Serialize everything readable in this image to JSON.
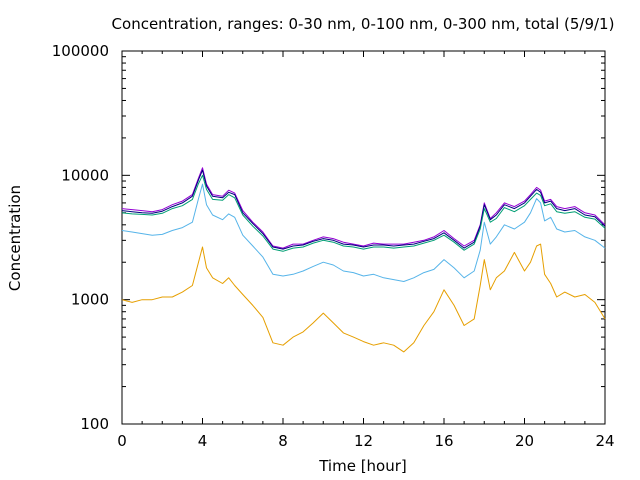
{
  "chart_data": {
    "type": "line",
    "title": "Concentration, ranges: 0-30 nm, 0-100 nm, 0-300 nm, total (5/9/1)",
    "xlabel": "Time [hour]",
    "ylabel": "Concentration",
    "xlim": [
      0,
      24
    ],
    "ylim": [
      100,
      100000
    ],
    "yscale": "log",
    "grid": false,
    "legend": "none",
    "xticks": [
      0,
      4,
      8,
      12,
      16,
      20,
      24
    ],
    "xtick_labels": [
      "0",
      "4",
      "8",
      "12",
      "16",
      "20",
      "24"
    ],
    "yticks": [
      100,
      1000,
      10000,
      100000
    ],
    "ytick_labels": [
      "100",
      "1000",
      "10000",
      "100000"
    ],
    "series": [
      {
        "color": "#9400d3",
        "x": [
          0,
          0.5,
          1,
          1.5,
          2,
          2.5,
          3,
          3.5,
          3.8,
          4,
          4.2,
          4.5,
          5,
          5.3,
          5.6,
          6,
          6.5,
          7,
          7.5,
          8,
          8.5,
          9,
          9.5,
          10,
          10.5,
          11,
          11.5,
          12,
          12.5,
          13,
          13.5,
          14,
          14.5,
          15,
          15.5,
          16,
          16.5,
          17,
          17.5,
          17.8,
          18,
          18.3,
          18.6,
          19,
          19.5,
          20,
          20.3,
          20.6,
          20.8,
          21,
          21.3,
          21.6,
          22,
          22.5,
          23,
          23.5,
          24
        ],
        "y": [
          5400,
          5300,
          5200,
          5100,
          5300,
          5800,
          6200,
          7000,
          9500,
          11500,
          8500,
          7000,
          6800,
          7600,
          7200,
          5200,
          4200,
          3500,
          2700,
          2600,
          2800,
          2800,
          3000,
          3200,
          3100,
          2900,
          2800,
          2700,
          2850,
          2800,
          2800,
          2800,
          2900,
          3000,
          3200,
          3600,
          3100,
          2700,
          3000,
          4000,
          6000,
          4500,
          5000,
          6000,
          5600,
          6200,
          7000,
          8000,
          7600,
          6200,
          6400,
          5600,
          5400,
          5600,
          5000,
          4800,
          4000
        ]
      },
      {
        "color": "#000080",
        "x": [
          0,
          0.5,
          1,
          1.5,
          2,
          2.5,
          3,
          3.5,
          3.8,
          4,
          4.2,
          4.5,
          5,
          5.3,
          5.6,
          6,
          6.5,
          7,
          7.5,
          8,
          8.5,
          9,
          9.5,
          10,
          10.5,
          11,
          11.5,
          12,
          12.5,
          13,
          13.5,
          14,
          14.5,
          15,
          15.5,
          16,
          16.5,
          17,
          17.5,
          17.8,
          18,
          18.3,
          18.6,
          19,
          19.5,
          20,
          20.3,
          20.6,
          20.8,
          21,
          21.3,
          21.6,
          22,
          22.5,
          23,
          23.5,
          24
        ],
        "y": [
          5200,
          5100,
          5000,
          4950,
          5150,
          5600,
          6000,
          6800,
          9200,
          11000,
          8200,
          6800,
          6600,
          7300,
          7000,
          5000,
          4100,
          3400,
          2650,
          2550,
          2700,
          2750,
          2950,
          3100,
          3000,
          2800,
          2750,
          2650,
          2750,
          2750,
          2700,
          2750,
          2800,
          2950,
          3100,
          3450,
          3000,
          2600,
          2900,
          3900,
          5800,
          4400,
          4800,
          5800,
          5400,
          6000,
          6800,
          7700,
          7300,
          6000,
          6200,
          5400,
          5200,
          5400,
          4800,
          4650,
          3900
        ]
      },
      {
        "color": "#009e73",
        "x": [
          0,
          0.5,
          1,
          1.5,
          2,
          2.5,
          3,
          3.5,
          3.8,
          4,
          4.2,
          4.5,
          5,
          5.3,
          5.6,
          6,
          6.5,
          7,
          7.5,
          8,
          8.5,
          9,
          9.5,
          10,
          10.5,
          11,
          11.5,
          12,
          12.5,
          13,
          13.5,
          14,
          14.5,
          15,
          15.5,
          16,
          16.5,
          17,
          17.5,
          17.8,
          18,
          18.3,
          18.6,
          19,
          19.5,
          20,
          20.3,
          20.6,
          20.8,
          21,
          21.3,
          21.6,
          22,
          22.5,
          23,
          23.5,
          24
        ],
        "y": [
          5000,
          4900,
          4850,
          4800,
          4950,
          5400,
          5700,
          6400,
          8600,
          10000,
          7700,
          6400,
          6300,
          7000,
          6600,
          4800,
          3900,
          3250,
          2550,
          2450,
          2600,
          2650,
          2850,
          3000,
          2900,
          2700,
          2650,
          2550,
          2650,
          2650,
          2600,
          2650,
          2700,
          2850,
          3000,
          3300,
          2900,
          2500,
          2800,
          3700,
          5400,
          4200,
          4500,
          5500,
          5100,
          5700,
          6400,
          7200,
          6900,
          5700,
          5900,
          5100,
          4950,
          5100,
          4600,
          4450,
          3750
        ]
      },
      {
        "color": "#56b4e9",
        "x": [
          0,
          0.5,
          1,
          1.5,
          2,
          2.5,
          3,
          3.5,
          3.8,
          4,
          4.2,
          4.5,
          5,
          5.3,
          5.6,
          6,
          6.5,
          7,
          7.5,
          8,
          8.5,
          9,
          9.5,
          10,
          10.5,
          11,
          11.5,
          12,
          12.5,
          13,
          13.5,
          14,
          14.5,
          15,
          15.5,
          16,
          16.5,
          17,
          17.5,
          17.8,
          18,
          18.3,
          18.6,
          19,
          19.5,
          20,
          20.3,
          20.6,
          20.8,
          21,
          21.3,
          21.6,
          22,
          22.5,
          23,
          23.5,
          24
        ],
        "y": [
          3600,
          3500,
          3400,
          3300,
          3350,
          3600,
          3800,
          4200,
          6500,
          8500,
          5800,
          4800,
          4400,
          4900,
          4600,
          3300,
          2700,
          2200,
          1600,
          1550,
          1600,
          1700,
          1850,
          2000,
          1900,
          1700,
          1650,
          1550,
          1600,
          1500,
          1450,
          1400,
          1500,
          1650,
          1750,
          2100,
          1800,
          1500,
          1700,
          2500,
          4200,
          2800,
          3200,
          4000,
          3700,
          4200,
          5000,
          6500,
          6000,
          4300,
          4600,
          3700,
          3500,
          3600,
          3200,
          3000,
          2600
        ]
      },
      {
        "color": "#e69f00",
        "x": [
          0,
          0.5,
          1,
          1.5,
          2,
          2.5,
          3,
          3.5,
          3.8,
          4,
          4.2,
          4.5,
          5,
          5.3,
          5.6,
          6,
          6.5,
          7,
          7.5,
          8,
          8.5,
          9,
          9.5,
          10,
          10.5,
          11,
          11.5,
          12,
          12.5,
          13,
          13.5,
          14,
          14.5,
          15,
          15.5,
          16,
          16.5,
          17,
          17.5,
          17.8,
          18,
          18.3,
          18.6,
          19,
          19.5,
          20,
          20.3,
          20.6,
          20.8,
          21,
          21.3,
          21.6,
          22,
          22.5,
          23,
          23.5,
          24
        ],
        "y": [
          1000,
          950,
          1000,
          1000,
          1050,
          1050,
          1150,
          1300,
          2000,
          2650,
          1800,
          1500,
          1350,
          1500,
          1300,
          1100,
          900,
          720,
          450,
          430,
          500,
          550,
          650,
          780,
          650,
          540,
          500,
          460,
          430,
          450,
          430,
          380,
          450,
          620,
          800,
          1200,
          900,
          620,
          700,
          1300,
          2100,
          1200,
          1500,
          1700,
          2400,
          1700,
          2000,
          2700,
          2800,
          1600,
          1350,
          1050,
          1150,
          1050,
          1100,
          950,
          700
        ]
      }
    ]
  }
}
